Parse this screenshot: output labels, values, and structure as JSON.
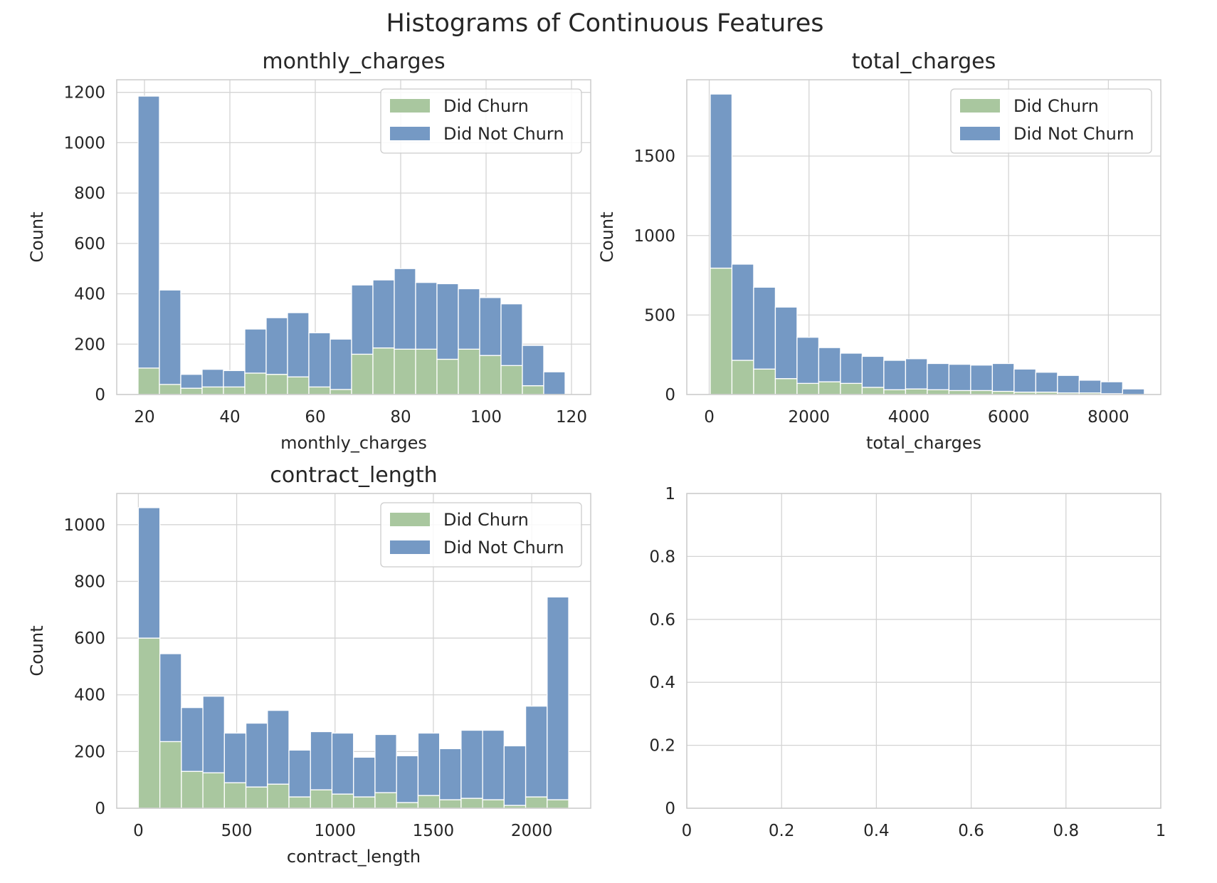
{
  "suptitle": "Histograms of Continuous Features",
  "colors": {
    "churn": "#a9c79f",
    "not_churn": "#7599c4"
  },
  "chart_data": [
    {
      "type": "bar",
      "stacked": true,
      "histogram": true,
      "title": "monthly_charges",
      "xlabel": "monthly_charges",
      "ylabel": "Count",
      "xlim": [
        13.5,
        124.5
      ],
      "ylim": [
        0,
        1250
      ],
      "xticks": [
        20,
        40,
        60,
        80,
        100,
        120
      ],
      "yticks": [
        0,
        200,
        400,
        600,
        800,
        1000,
        1200
      ],
      "grid": true,
      "legend": "upper right",
      "bin_edges": [
        18.5,
        23.5,
        28.5,
        33.5,
        38.5,
        43.5,
        48.5,
        53.5,
        58.5,
        63.5,
        68.5,
        73.5,
        78.5,
        83.5,
        88.5,
        93.5,
        98.5,
        103.5,
        108.5,
        113.5,
        118.5
      ],
      "series": [
        {
          "name": "Did Churn",
          "values": [
            105,
            40,
            25,
            30,
            30,
            85,
            80,
            70,
            30,
            20,
            160,
            185,
            180,
            180,
            140,
            180,
            155,
            115,
            35,
            0
          ]
        },
        {
          "name": "Did Not Churn",
          "values": [
            1080,
            375,
            55,
            70,
            65,
            175,
            225,
            255,
            215,
            200,
            275,
            270,
            320,
            265,
            300,
            240,
            230,
            245,
            160,
            90
          ]
        }
      ]
    },
    {
      "type": "bar",
      "stacked": true,
      "histogram": true,
      "title": "total_charges",
      "xlabel": "total_charges",
      "ylabel": "Count",
      "xlim": [
        -450,
        9050
      ],
      "ylim": [
        0,
        1980
      ],
      "xticks": [
        0,
        2000,
        4000,
        6000,
        8000
      ],
      "yticks": [
        0,
        500,
        1000,
        1500
      ],
      "grid": true,
      "legend": "upper right",
      "bin_edges": [
        20,
        455,
        890,
        1325,
        1760,
        2195,
        2630,
        3065,
        3500,
        3935,
        4370,
        4805,
        5240,
        5675,
        6110,
        6545,
        6980,
        7415,
        7850,
        8285,
        8720
      ],
      "series": [
        {
          "name": "Did Churn",
          "values": [
            795,
            215,
            160,
            100,
            70,
            80,
            70,
            45,
            30,
            35,
            30,
            25,
            25,
            20,
            15,
            15,
            10,
            10,
            5,
            0
          ]
        },
        {
          "name": "Did Not Churn",
          "values": [
            1095,
            605,
            515,
            450,
            290,
            215,
            190,
            195,
            185,
            190,
            165,
            165,
            160,
            175,
            145,
            125,
            110,
            80,
            75,
            35
          ]
        }
      ]
    },
    {
      "type": "bar",
      "stacked": true,
      "histogram": true,
      "title": "contract_length",
      "xlabel": "contract_length",
      "ylabel": "Count",
      "xlim": [
        -110,
        2300
      ],
      "ylim": [
        0,
        1110
      ],
      "xticks": [
        0,
        500,
        1000,
        1500,
        2000
      ],
      "yticks": [
        0,
        200,
        400,
        600,
        800,
        1000
      ],
      "grid": true,
      "legend": "upper right",
      "bin_edges": [
        0,
        109.4,
        218.8,
        328.2,
        437.6,
        547,
        656.4,
        765.8,
        875.2,
        984.6,
        1094,
        1203.4,
        1312.8,
        1422.2,
        1531.6,
        1641,
        1750.4,
        1859.8,
        1969.2,
        2078.6,
        2188
      ],
      "series": [
        {
          "name": "Did Churn",
          "values": [
            600,
            235,
            130,
            125,
            90,
            75,
            85,
            40,
            65,
            50,
            40,
            55,
            20,
            45,
            30,
            35,
            30,
            10,
            40,
            30
          ]
        },
        {
          "name": "Did Not Churn",
          "values": [
            460,
            310,
            225,
            270,
            175,
            225,
            260,
            165,
            205,
            215,
            140,
            205,
            165,
            220,
            180,
            240,
            245,
            210,
            320,
            715
          ]
        }
      ]
    },
    {
      "type": "scatter",
      "title": "",
      "xlabel": "",
      "ylabel": "",
      "xlim": [
        0,
        1
      ],
      "ylim": [
        0,
        1
      ],
      "xticks": [
        0,
        0.2,
        0.4,
        0.6,
        0.8,
        1
      ],
      "yticks": [
        0,
        0.2,
        0.4,
        0.6,
        0.8,
        1
      ],
      "grid": true,
      "series": []
    }
  ]
}
